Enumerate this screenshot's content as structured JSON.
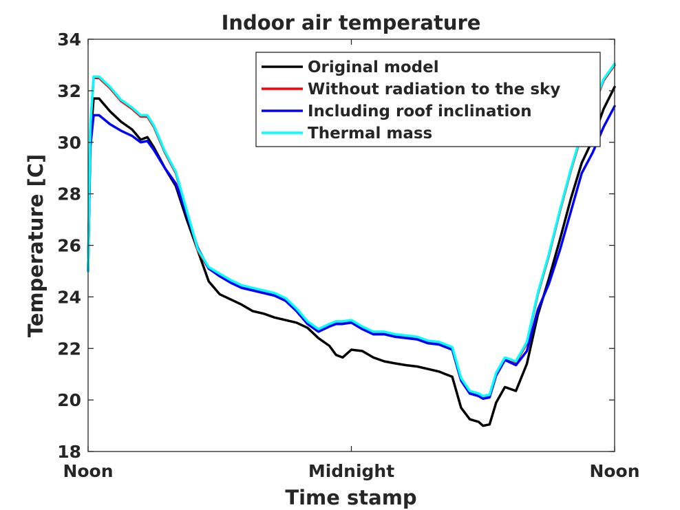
{
  "chart_data": {
    "type": "line",
    "title": "Indoor air temperature",
    "xlabel": "Time stamp",
    "ylabel": "Temperature [C]",
    "xlim": [
      0,
      24
    ],
    "ylim": [
      18,
      34
    ],
    "yticks": [
      18,
      20,
      22,
      24,
      26,
      28,
      30,
      32,
      34
    ],
    "xticks": [
      {
        "value": 0,
        "label": "Noon"
      },
      {
        "value": 12,
        "label": "Midnight"
      },
      {
        "value": 24,
        "label": "Noon"
      }
    ],
    "legend_position": "top-right",
    "x": [
      0,
      0.1,
      0.25,
      0.5,
      1,
      1.5,
      2,
      2.4,
      2.7,
      3,
      3.5,
      4,
      4.5,
      5,
      5.5,
      6,
      6.5,
      7,
      7.5,
      8,
      8.5,
      9,
      9.5,
      10,
      10.5,
      11,
      11.3,
      11.6,
      12,
      12.5,
      13,
      13.5,
      14,
      14.5,
      15,
      15.5,
      16,
      16.3,
      16.6,
      17,
      17.4,
      17.8,
      18,
      18.3,
      18.6,
      19,
      19.5,
      20,
      20.5,
      21,
      21.5,
      22,
      22.5,
      23,
      23.5,
      24
    ],
    "series": [
      {
        "name": "Original model",
        "color": "#000000",
        "values": [
          25.0,
          30.0,
          31.7,
          31.7,
          31.2,
          30.8,
          30.5,
          30.1,
          30.2,
          29.8,
          29.0,
          28.3,
          27.0,
          25.8,
          24.6,
          24.1,
          23.9,
          23.7,
          23.45,
          23.35,
          23.2,
          23.1,
          23.0,
          22.8,
          22.4,
          22.1,
          21.75,
          21.65,
          21.95,
          21.9,
          21.65,
          21.5,
          21.42,
          21.35,
          21.3,
          21.2,
          21.1,
          21.0,
          20.9,
          19.7,
          19.25,
          19.15,
          19.0,
          19.05,
          19.9,
          20.5,
          20.35,
          21.4,
          23.3,
          24.7,
          26.2,
          27.8,
          29.2,
          30.1,
          31.3,
          32.15
        ]
      },
      {
        "name": "Without radiation to the sky",
        "color": "#ff0000",
        "values": [
          25.0,
          30.6,
          32.5,
          32.5,
          32.1,
          31.6,
          31.3,
          31.0,
          31.0,
          30.6,
          29.6,
          28.8,
          27.3,
          25.8,
          25.1,
          24.85,
          24.6,
          24.4,
          24.3,
          24.2,
          24.1,
          23.9,
          23.5,
          23.0,
          22.7,
          22.9,
          23.0,
          23.0,
          23.05,
          22.8,
          22.6,
          22.6,
          22.5,
          22.45,
          22.4,
          22.25,
          22.2,
          22.1,
          22.0,
          20.8,
          20.3,
          20.2,
          20.1,
          20.15,
          21.0,
          21.6,
          21.45,
          22.2,
          24.1,
          25.6,
          27.3,
          28.9,
          30.3,
          31.3,
          32.4,
          33.0
        ]
      },
      {
        "name": "Including roof inclination",
        "color": "#0000ff",
        "values": [
          25.0,
          29.8,
          31.05,
          31.05,
          30.7,
          30.45,
          30.25,
          30.0,
          30.05,
          29.7,
          29.0,
          28.4,
          27.2,
          25.9,
          25.1,
          24.8,
          24.55,
          24.35,
          24.25,
          24.15,
          24.05,
          23.85,
          23.45,
          22.95,
          22.65,
          22.85,
          22.95,
          22.95,
          23.0,
          22.75,
          22.55,
          22.55,
          22.45,
          22.4,
          22.35,
          22.2,
          22.15,
          22.05,
          21.95,
          20.75,
          20.25,
          20.15,
          20.05,
          20.1,
          20.95,
          21.55,
          21.35,
          21.9,
          23.5,
          24.5,
          25.8,
          27.3,
          28.8,
          29.6,
          30.6,
          31.4
        ]
      },
      {
        "name": "Thermal mass",
        "color": "#00ffff",
        "values": [
          25.0,
          30.6,
          32.55,
          32.55,
          32.15,
          31.65,
          31.35,
          31.05,
          31.05,
          30.65,
          29.65,
          28.85,
          27.35,
          25.85,
          25.15,
          24.9,
          24.65,
          24.45,
          24.35,
          24.25,
          24.15,
          23.95,
          23.55,
          23.05,
          22.75,
          22.95,
          23.05,
          23.05,
          23.1,
          22.85,
          22.65,
          22.65,
          22.55,
          22.5,
          22.45,
          22.3,
          22.25,
          22.15,
          22.05,
          20.85,
          20.35,
          20.25,
          20.15,
          20.2,
          21.05,
          21.65,
          21.5,
          22.25,
          24.15,
          25.65,
          27.35,
          28.95,
          30.35,
          31.35,
          32.45,
          33.05
        ]
      }
    ]
  }
}
